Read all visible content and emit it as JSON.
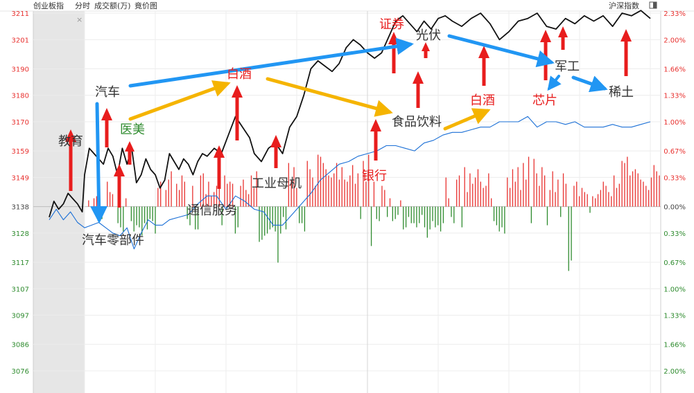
{
  "header": {
    "title": "创业板指",
    "tab_fenshi": "分时",
    "tab_volume": "成交额(万)",
    "tab_auction": "竟价图",
    "right_title": "沪深指数",
    "close_mark": "×"
  },
  "colors": {
    "up": "#e8312f",
    "down": "#2e8b2e",
    "index_line": "#111111",
    "avg_line": "#1a6fd6",
    "arrow_red": "#e81d1d",
    "arrow_blue": "#2196f3",
    "arrow_gold": "#f5b400",
    "preopen_bg": "#e6e6e6"
  },
  "chart_data": {
    "type": "line",
    "ylim": [
      3076,
      3211
    ],
    "y_ticks": [
      {
        "value": 3211,
        "label": "3211",
        "pct": "2.33%",
        "side": "up"
      },
      {
        "value": 3201,
        "label": "3201",
        "pct": "2.00%",
        "side": "up"
      },
      {
        "value": 3190,
        "label": "3190",
        "pct": "1.66%",
        "side": "up"
      },
      {
        "value": 3180,
        "label": "3180",
        "pct": "1.33%",
        "side": "up"
      },
      {
        "value": 3170,
        "label": "3170",
        "pct": "1.00%",
        "side": "up"
      },
      {
        "value": 3159,
        "label": "3159",
        "pct": "0.67%",
        "side": "up"
      },
      {
        "value": 3149,
        "label": "3149",
        "pct": "0.33%",
        "side": "up"
      },
      {
        "value": 3138,
        "label": "3138",
        "pct": "0.00%",
        "side": "flat"
      },
      {
        "value": 3128,
        "label": "3128",
        "pct": "0.33%",
        "side": "down"
      },
      {
        "value": 3117,
        "label": "3117",
        "pct": "0.67%",
        "side": "down"
      },
      {
        "value": 3107,
        "label": "3107",
        "pct": "1.00%",
        "side": "down"
      },
      {
        "value": 3097,
        "label": "3097",
        "pct": "1.33%",
        "side": "down"
      },
      {
        "value": 3086,
        "label": "3086",
        "pct": "1.66%",
        "side": "down"
      },
      {
        "value": 3076,
        "label": "3076",
        "pct": "2.00%",
        "side": "down"
      }
    ],
    "series": [
      {
        "style": "index",
        "x": [
          -15,
          -13,
          -11,
          -9,
          -7,
          -5,
          -3,
          -1,
          0,
          2,
          4,
          6,
          8,
          10,
          12,
          14,
          16,
          18,
          20,
          22,
          24,
          26,
          28,
          30,
          32,
          34,
          36,
          38,
          40,
          42,
          44,
          46,
          48,
          50,
          52,
          55,
          58,
          61,
          64,
          67,
          70,
          72,
          75,
          78,
          81,
          84,
          87,
          90,
          93,
          96,
          99,
          102,
          105,
          108,
          111,
          114,
          117,
          120,
          123,
          126,
          129,
          132,
          135,
          138,
          141,
          144,
          147,
          150,
          153,
          156,
          160,
          164,
          168,
          172,
          176,
          180,
          184,
          188,
          192,
          196,
          200,
          204,
          208,
          212,
          216,
          220,
          224,
          228,
          232,
          236,
          240
        ],
        "values": [
          3134,
          3140,
          3137,
          3139,
          3143,
          3141,
          3139,
          3136,
          3150,
          3160,
          3158,
          3156,
          3154,
          3160,
          3157,
          3150,
          3160,
          3154,
          3160,
          3147,
          3150,
          3156,
          3152,
          3150,
          3145,
          3148,
          3158,
          3155,
          3152,
          3156,
          3154,
          3150,
          3155,
          3158,
          3157,
          3160,
          3158,
          3165,
          3172,
          3168,
          3164,
          3158,
          3155,
          3160,
          3162,
          3158,
          3168,
          3172,
          3180,
          3190,
          3193,
          3191,
          3189,
          3192,
          3198,
          3201,
          3199,
          3196,
          3194,
          3196,
          3202,
          3208,
          3210,
          3207,
          3204,
          3208,
          3205,
          3209,
          3210,
          3208,
          3206,
          3209,
          3211,
          3207,
          3201,
          3204,
          3208,
          3209,
          3211,
          3206,
          3205,
          3209,
          3207,
          3210,
          3208,
          3210,
          3206,
          3211,
          3210,
          3212,
          3209
        ]
      },
      {
        "style": "average",
        "x": [
          -15,
          -12,
          -9,
          -6,
          -3,
          0,
          3,
          6,
          9,
          12,
          15,
          18,
          21,
          24,
          27,
          30,
          33,
          36,
          40,
          44,
          48,
          52,
          56,
          60,
          64,
          68,
          72,
          76,
          80,
          84,
          88,
          92,
          96,
          100,
          104,
          108,
          112,
          116,
          120,
          124,
          128,
          132,
          136,
          140,
          144,
          148,
          152,
          156,
          160,
          164,
          168,
          172,
          176,
          180,
          184,
          188,
          192,
          196,
          200,
          204,
          208,
          212,
          216,
          220,
          224,
          228,
          232,
          236,
          240
        ],
        "values": [
          3133,
          3137,
          3133,
          3136,
          3132,
          3130,
          3131,
          3132,
          3130,
          3128,
          3127,
          3130,
          3122,
          3128,
          3133,
          3131,
          3131,
          3133,
          3134,
          3135,
          3139,
          3142,
          3142,
          3137,
          3142,
          3140,
          3137,
          3136,
          3131,
          3131,
          3135,
          3139,
          3143,
          3148,
          3151,
          3154,
          3155,
          3157,
          3158,
          3159,
          3161,
          3161,
          3160,
          3159,
          3162,
          3163,
          3165,
          3166,
          3166,
          3167,
          3168,
          3168,
          3170,
          3170,
          3170,
          3172,
          3168,
          3170,
          3170,
          3169,
          3170,
          3168,
          3168,
          3168,
          3169,
          3168,
          3168,
          3169,
          3170
        ]
      }
    ],
    "volume_bars": [
      0,
      3,
      0,
      4,
      5,
      0,
      -6,
      0,
      12,
      7,
      6,
      0,
      -8,
      -10,
      -12,
      4,
      0,
      -7,
      -12,
      -9,
      -10,
      -14,
      -8,
      -11,
      -6,
      -7,
      -13,
      9,
      12,
      0,
      8,
      13,
      17,
      0,
      11,
      8,
      15,
      12,
      -6,
      -9,
      10,
      -11,
      -11,
      15,
      16,
      6,
      12,
      5,
      7,
      10,
      12,
      -9,
      15,
      11,
      12,
      11,
      -13,
      -10,
      10,
      13,
      8,
      6,
      15,
      9,
      17,
      -17,
      -16,
      -14,
      -13,
      -11,
      -10,
      -12,
      -27,
      -13,
      -5,
      -11,
      21,
      13,
      19,
      9,
      -8,
      -8,
      -12,
      22,
      18,
      14,
      10,
      25,
      24,
      21,
      18,
      15,
      14,
      16,
      21,
      13,
      19,
      13,
      12,
      15,
      20,
      11,
      16,
      -6,
      22,
      12,
      25,
      -19,
      12,
      -6,
      -7,
      10,
      8,
      -5,
      4,
      -7,
      -6,
      -4,
      3,
      -11,
      -10,
      -5,
      -8,
      -8,
      -10,
      -8,
      -4,
      -10,
      -15,
      -11,
      -7,
      -10,
      -9,
      -12,
      -8,
      14,
      4,
      -5,
      -8,
      13,
      15,
      -10,
      19,
      7,
      16,
      11,
      14,
      18,
      12,
      9,
      10,
      16,
      4,
      -7,
      -9,
      -12,
      -10,
      -13,
      14,
      9,
      18,
      12,
      19,
      8,
      21,
      13,
      24,
      -8,
      23,
      16,
      10,
      19,
      15,
      -9,
      8,
      17,
      7,
      13,
      -5,
      16,
      11,
      -31,
      -26,
      10,
      12,
      5,
      9,
      7,
      6,
      -3,
      5,
      4,
      6,
      8,
      12,
      10,
      7,
      5,
      15,
      9,
      11,
      22,
      21,
      24,
      15,
      17,
      18,
      16,
      13,
      12,
      10,
      8,
      14,
      20,
      17,
      15
    ],
    "annotations": [
      {
        "text": "教育",
        "color": "#333333"
      },
      {
        "text": "汽车",
        "color": "#333333"
      },
      {
        "text": "医美",
        "color": "#2e8b2e"
      },
      {
        "text": "白酒",
        "color": "#e81d1d"
      },
      {
        "text": "汽车零部件",
        "color": "#333333"
      },
      {
        "text": "通信服务",
        "color": "#333333"
      },
      {
        "text": "工业母机",
        "color": "#333333"
      },
      {
        "text": "证券",
        "color": "#e81d1d"
      },
      {
        "text": "光伏",
        "color": "#333333"
      },
      {
        "text": "银行",
        "color": "#e81d1d"
      },
      {
        "text": "食品饮料",
        "color": "#333333"
      },
      {
        "text": "白酒",
        "color": "#e81d1d"
      },
      {
        "text": "军工",
        "color": "#333333"
      },
      {
        "text": "芯片",
        "color": "#e81d1d"
      },
      {
        "text": "稀土",
        "color": "#333333"
      }
    ]
  }
}
